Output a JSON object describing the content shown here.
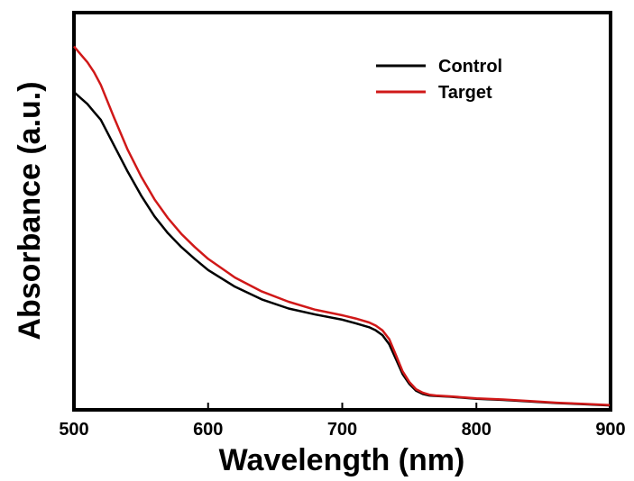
{
  "chart_data": {
    "type": "line",
    "title": "",
    "xlabel": "Wavelength (nm)",
    "ylabel": "Absorbance (a.u.)",
    "xlim": [
      500,
      900
    ],
    "ylim": [
      0,
      1.0
    ],
    "x_ticks": [
      "500",
      "600",
      "700",
      "800",
      "900"
    ],
    "y_ticks_shown": false,
    "grid": false,
    "legend_position": "top-right",
    "series": [
      {
        "name": "Control",
        "color": "#000000",
        "x": [
          500,
          505,
          510,
          515,
          520,
          530,
          540,
          550,
          560,
          570,
          580,
          590,
          600,
          620,
          640,
          660,
          680,
          700,
          710,
          720,
          725,
          730,
          735,
          740,
          745,
          750,
          755,
          760,
          765,
          770,
          780,
          800,
          820,
          840,
          860,
          880,
          900
        ],
        "y": [
          0.8,
          0.785,
          0.77,
          0.75,
          0.73,
          0.665,
          0.6,
          0.54,
          0.487,
          0.445,
          0.41,
          0.38,
          0.352,
          0.31,
          0.278,
          0.255,
          0.24,
          0.227,
          0.218,
          0.208,
          0.2,
          0.188,
          0.165,
          0.128,
          0.09,
          0.065,
          0.048,
          0.04,
          0.036,
          0.035,
          0.033,
          0.028,
          0.025,
          0.021,
          0.017,
          0.014,
          0.011
        ]
      },
      {
        "name": "Target",
        "color": "#d01818",
        "x": [
          500,
          505,
          510,
          515,
          520,
          530,
          540,
          550,
          560,
          570,
          580,
          590,
          600,
          620,
          640,
          660,
          680,
          700,
          710,
          720,
          725,
          730,
          735,
          740,
          745,
          750,
          755,
          760,
          765,
          770,
          780,
          800,
          820,
          840,
          860,
          880,
          900
        ],
        "y": [
          0.915,
          0.895,
          0.875,
          0.85,
          0.818,
          0.735,
          0.655,
          0.588,
          0.53,
          0.483,
          0.443,
          0.41,
          0.38,
          0.333,
          0.298,
          0.272,
          0.252,
          0.238,
          0.23,
          0.22,
          0.212,
          0.2,
          0.178,
          0.138,
          0.097,
          0.07,
          0.052,
          0.043,
          0.038,
          0.036,
          0.034,
          0.029,
          0.026,
          0.022,
          0.018,
          0.015,
          0.012
        ]
      }
    ]
  }
}
